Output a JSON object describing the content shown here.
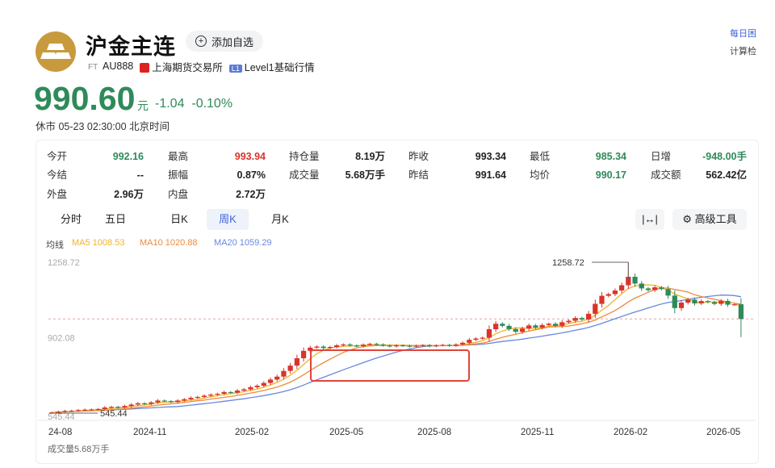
{
  "header": {
    "title": "沪金主连",
    "add_watchlist": "添加自选",
    "ft_tag": "FT",
    "code": "AU888",
    "exchange": "上海期货交易所",
    "l1_tag": "L1",
    "level": "Level1基础行情",
    "price": "990.60",
    "unit": "元",
    "change": "-1.04",
    "change_pct": "-0.10%",
    "status_time": "休市 05-23 02:30:00 北京时间",
    "corner_link": "每日困",
    "corner_text": "计算检"
  },
  "stats": [
    {
      "label": "今开",
      "value": "992.16",
      "color": "green"
    },
    {
      "label": "最高",
      "value": "993.94",
      "color": "red"
    },
    {
      "label": "持仓量",
      "value": "8.19万",
      "color": "normal"
    },
    {
      "label": "昨收",
      "value": "993.34",
      "color": "normal"
    },
    {
      "label": "最低",
      "value": "985.34",
      "color": "green"
    },
    {
      "label": "日增",
      "value": "-948.00手",
      "color": "green"
    },
    {
      "label": "今结",
      "value": "--",
      "color": "normal"
    },
    {
      "label": "振幅",
      "value": "0.87%",
      "color": "normal"
    },
    {
      "label": "成交量",
      "value": "5.68万手",
      "color": "normal"
    },
    {
      "label": "昨结",
      "value": "991.64",
      "color": "normal"
    },
    {
      "label": "均价",
      "value": "990.17",
      "color": "green"
    },
    {
      "label": "成交额",
      "value": "562.42亿",
      "color": "normal"
    },
    {
      "label": "外盘",
      "value": "2.96万",
      "color": "normal"
    },
    {
      "label": "内盘",
      "value": "2.72万",
      "color": "normal"
    }
  ],
  "tabs": [
    "分时",
    "五日",
    "日K",
    "周K",
    "月K"
  ],
  "active_tab": "周K",
  "tools": {
    "expand_icon": "|↔|",
    "advanced_tools": "高级工具"
  },
  "ma": {
    "label": "均线",
    "ma5": "MA5 1008.53",
    "ma10": "MA10 1020.88",
    "ma20": "MA20 1059.29"
  },
  "colors": {
    "up": "#d9342b",
    "down": "#2f8a5a",
    "ma5": "#f0b429",
    "ma10": "#ef8a3c",
    "ma20": "#6a88e0",
    "accent": "#3f62d8"
  },
  "chart_data": {
    "type": "candlestick",
    "period": "weekly",
    "y_axis_labels": [
      "1258.72",
      "902.08",
      "545.44"
    ],
    "high_annotation": "1258.72",
    "low_annotation": "545.44",
    "x_tick_labels": [
      "24-08",
      "2024-11",
      "2025-02",
      "2025-05",
      "2025-08",
      "2025-11",
      "2026-02",
      "2026-05"
    ],
    "close_series": [
      548,
      552,
      556,
      557,
      560,
      562,
      563,
      565,
      572,
      575,
      572,
      579,
      586,
      592,
      589,
      596,
      605,
      602,
      598,
      605,
      611,
      618,
      622,
      628,
      633,
      637,
      645,
      642,
      652,
      658,
      668,
      675,
      688,
      704,
      718,
      745,
      770,
      805,
      840,
      855,
      860,
      853,
      858,
      866,
      870,
      865,
      862,
      869,
      873,
      870,
      865,
      861,
      866,
      864,
      860,
      864,
      867,
      862,
      866,
      868,
      864,
      870,
      878,
      892,
      898,
      902,
      942,
      968,
      958,
      943,
      930,
      945,
      960,
      950,
      962,
      968,
      958,
      975,
      982,
      995,
      988,
      1015,
      1062,
      1100,
      1108,
      1125,
      1150,
      1190,
      1158,
      1135,
      1127,
      1140,
      1132,
      1101,
      1042,
      1068,
      1082,
      1064,
      1075,
      1070,
      1062,
      1076,
      1058,
      1060,
      990.6
    ],
    "moving_averages": [
      "MA5",
      "MA10",
      "MA20"
    ],
    "highlight_box": "2025-04 ~ 2025-09",
    "volume_label": "成交量5.68万手"
  }
}
